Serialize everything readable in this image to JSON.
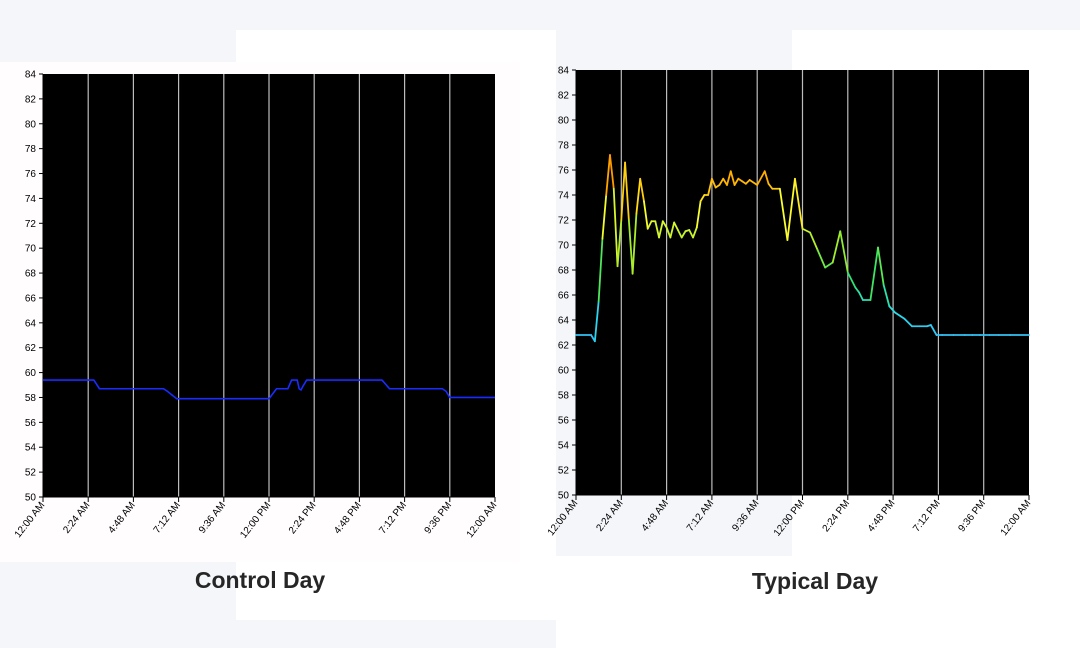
{
  "colors": {
    "page_background": "#f4f6f9",
    "plot_background": "#000000",
    "control_line": "#1a2cff",
    "gridline": "#bdbdbd",
    "tick_text": "#000000",
    "caption_text": "#262626",
    "heat_scale": [
      "#38b6ff",
      "#27e0e8",
      "#2ee46a",
      "#a8ee2a",
      "#ffff30",
      "#ffb000",
      "#ff3a00"
    ]
  },
  "chart_data": [
    {
      "type": "line",
      "caption": "Control Day",
      "title": "",
      "xlabel": "",
      "ylabel": "",
      "x_tick_labels": [
        "12:00 AM",
        "2:24 AM",
        "4:48 AM",
        "7:12 AM",
        "9:36 AM",
        "12:00 PM",
        "2:24 PM",
        "4:48 PM",
        "7:12 PM",
        "9:36 PM",
        "12:00 AM"
      ],
      "y_tick_labels": [
        "84",
        "82",
        "80",
        "78",
        "76",
        "74",
        "72",
        "70",
        "68",
        "66",
        "64",
        "62",
        "60",
        "58",
        "56",
        "54",
        "52",
        "50"
      ],
      "xlim_hours": [
        0,
        24
      ],
      "ylim": [
        50,
        84
      ],
      "grid": "vertical",
      "line_style": "solid",
      "series": [
        {
          "x_hours": [
            0.0,
            2.7,
            3.0,
            6.4,
            6.6,
            7.1,
            12.0,
            12.4,
            13.0,
            13.2,
            13.5,
            13.6,
            13.7,
            13.8,
            14.0,
            14.3,
            15.0,
            18.0,
            18.4,
            21.2,
            21.4,
            21.6,
            24.0
          ],
          "values": [
            59.4,
            59.4,
            58.7,
            58.7,
            58.5,
            57.9,
            57.9,
            58.7,
            58.7,
            59.4,
            59.4,
            58.7,
            58.6,
            58.9,
            59.4,
            59.4,
            59.4,
            59.4,
            58.7,
            58.7,
            58.5,
            58.0,
            58.0
          ]
        }
      ]
    },
    {
      "type": "line",
      "caption": "Typical Day",
      "title": "",
      "xlabel": "",
      "ylabel": "",
      "x_tick_labels": [
        "12:00 AM",
        "2:24 AM",
        "4:48 AM",
        "7:12 AM",
        "9:36 AM",
        "12:00 PM",
        "2:24 PM",
        "4:48 PM",
        "7:12 PM",
        "9:36 PM",
        "12:00 AM"
      ],
      "y_tick_labels": [
        "84",
        "82",
        "80",
        "78",
        "76",
        "74",
        "72",
        "70",
        "68",
        "66",
        "64",
        "62",
        "60",
        "58",
        "56",
        "54",
        "52",
        "50"
      ],
      "xlim_hours": [
        0,
        24
      ],
      "ylim": [
        50,
        84
      ],
      "grid": "vertical",
      "line_style": "colored by value",
      "series": [
        {
          "x_hours": [
            0.0,
            0.8,
            1.0,
            1.2,
            1.4,
            1.6,
            1.8,
            2.0,
            2.2,
            2.4,
            2.6,
            2.8,
            3.0,
            3.2,
            3.4,
            3.6,
            3.8,
            4.0,
            4.2,
            4.4,
            4.6,
            4.8,
            5.0,
            5.2,
            5.4,
            5.6,
            5.8,
            6.0,
            6.2,
            6.4,
            6.6,
            6.8,
            7.0,
            7.2,
            7.4,
            7.6,
            7.8,
            8.0,
            8.2,
            8.4,
            8.6,
            8.8,
            9.0,
            9.2,
            9.6,
            10.0,
            10.2,
            10.4,
            10.8,
            11.2,
            11.6,
            12.0,
            12.4,
            12.8,
            13.2,
            13.6,
            14.0,
            14.4,
            14.8,
            15.0,
            15.2,
            15.6,
            16.0,
            16.3,
            16.6,
            16.9,
            17.2,
            17.4,
            17.8,
            18.2,
            18.6,
            18.8,
            19.1,
            19.4,
            20.0,
            20.6,
            21.0,
            21.4,
            21.9,
            22.4,
            23.0,
            24.0
          ],
          "values": [
            62.8,
            62.8,
            62.3,
            65.5,
            70.5,
            74.0,
            77.2,
            74.5,
            68.3,
            72.0,
            76.6,
            72.0,
            67.7,
            72.5,
            75.3,
            73.5,
            71.3,
            71.9,
            71.9,
            70.6,
            71.9,
            71.4,
            70.6,
            71.8,
            71.2,
            70.6,
            71.1,
            71.2,
            70.6,
            71.4,
            73.5,
            74.0,
            74.0,
            75.3,
            74.6,
            74.8,
            75.3,
            74.8,
            75.9,
            74.8,
            75.3,
            75.1,
            74.9,
            75.2,
            74.8,
            75.9,
            74.9,
            74.5,
            74.5,
            70.4,
            75.3,
            71.3,
            71.0,
            69.6,
            68.2,
            68.6,
            71.1,
            67.8,
            66.6,
            66.2,
            65.6,
            65.6,
            69.8,
            66.8,
            65.1,
            64.6,
            64.3,
            64.1,
            63.5,
            63.5,
            63.5,
            63.6,
            62.8,
            62.8,
            62.8,
            62.8,
            62.8,
            62.8,
            62.8,
            62.8,
            62.8,
            62.8
          ]
        }
      ]
    }
  ]
}
